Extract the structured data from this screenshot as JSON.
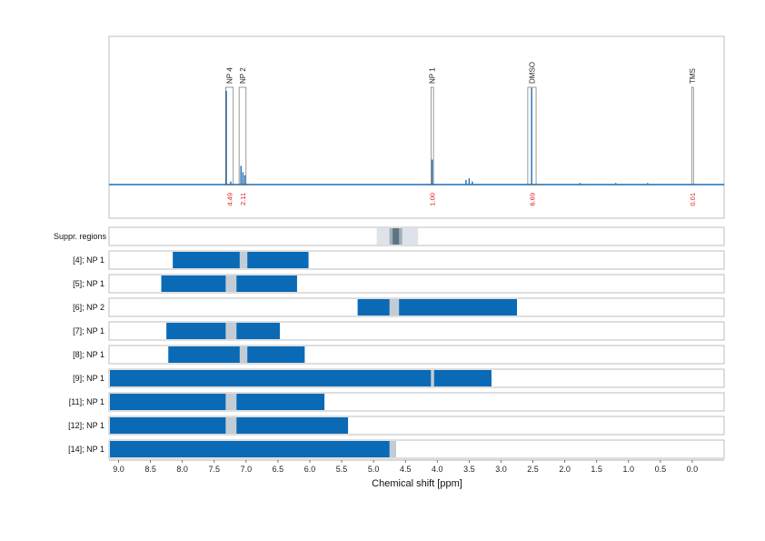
{
  "chart_data": {
    "type": "nmr_spectrum_with_range_bars",
    "xlabel": "Chemical shift [ppm]",
    "x_reversed": true,
    "xlim": [
      9.15,
      -0.5
    ],
    "x_ticks": [
      "9.0",
      "8.5",
      "8.0",
      "7.5",
      "7.0",
      "6.5",
      "6.0",
      "5.5",
      "5.0",
      "4.5",
      "4.0",
      "3.5",
      "3.0",
      "2.5",
      "2.0",
      "1.5",
      "1.0",
      "0.5",
      "0.0"
    ],
    "colors": {
      "spectrum": "#1f6fb3",
      "bar": "#0a6ab6",
      "suppressed": "#c3ccd4",
      "suppressed_outer": "#dde3e9",
      "suppressed_inner": "#5f7482",
      "integral": "#e31a1c",
      "grid": "#bdbdbd"
    },
    "spectrum": {
      "baseline": 0,
      "points": [
        [
          7.31,
          0.6
        ],
        [
          7.24,
          0.02
        ],
        [
          7.08,
          0.12
        ],
        [
          7.05,
          0.08
        ],
        [
          7.02,
          0.06
        ],
        [
          4.08,
          0.16
        ],
        [
          3.55,
          0.03
        ],
        [
          3.5,
          0.04
        ],
        [
          3.45,
          0.02
        ],
        [
          2.52,
          0.62
        ],
        [
          1.76,
          0.01
        ],
        [
          1.2,
          0.01
        ],
        [
          0.7,
          0.01
        ]
      ]
    },
    "peaks": [
      {
        "label": "NP 4",
        "ppm_from": 7.32,
        "ppm_to": 7.2,
        "height": 0.62,
        "integral": "4.49"
      },
      {
        "label": "NP 2",
        "ppm_from": 7.11,
        "ppm_to": 7.0,
        "height": 0.62,
        "integral": "2.11"
      },
      {
        "label": "NP 1",
        "ppm_from": 4.1,
        "ppm_to": 4.06,
        "height": 0.62,
        "integral": "1.00"
      },
      {
        "label": "DMSO",
        "ppm_from": 2.58,
        "ppm_to": 2.45,
        "height": 0.62,
        "integral": "6.69"
      },
      {
        "label": "TMS",
        "ppm_from": 0.01,
        "ppm_to": -0.01,
        "height": 0.62,
        "integral": "0.01"
      }
    ],
    "suppressed_regions": {
      "label": "Suppr. regions",
      "outer": [
        4.95,
        4.3
      ],
      "inner": [
        4.75,
        4.55
      ],
      "core": [
        4.7,
        4.6
      ]
    },
    "rows": [
      {
        "label": "[4]; NP 1",
        "from": 8.15,
        "to": 6.02,
        "gap": [
          7.1,
          6.98
        ]
      },
      {
        "label": "[5]; NP 1",
        "from": 8.33,
        "to": 6.2,
        "gap": [
          7.32,
          7.15
        ]
      },
      {
        "label": "[6]; NP 2",
        "from": 5.25,
        "to": 2.75,
        "gap": [
          4.75,
          4.6
        ]
      },
      {
        "label": "[7]; NP 1",
        "from": 8.25,
        "to": 6.47,
        "gap": [
          7.32,
          7.15
        ]
      },
      {
        "label": "[8]; NP 1",
        "from": 8.22,
        "to": 6.08,
        "gap": [
          7.1,
          6.98
        ]
      },
      {
        "label": "[9]; NP 1",
        "from": 9.15,
        "to": 3.15,
        "gap": [
          4.1,
          4.05
        ]
      },
      {
        "label": "[11]; NP 1",
        "from": 9.15,
        "to": 5.77,
        "gap": [
          7.32,
          7.15
        ]
      },
      {
        "label": "[12]; NP 1",
        "from": 9.15,
        "to": 5.4,
        "gap": [
          7.32,
          7.15
        ]
      },
      {
        "label": "[14]; NP 1",
        "from": 9.15,
        "to": 4.65,
        "gap": [
          4.75,
          4.65
        ]
      }
    ]
  }
}
